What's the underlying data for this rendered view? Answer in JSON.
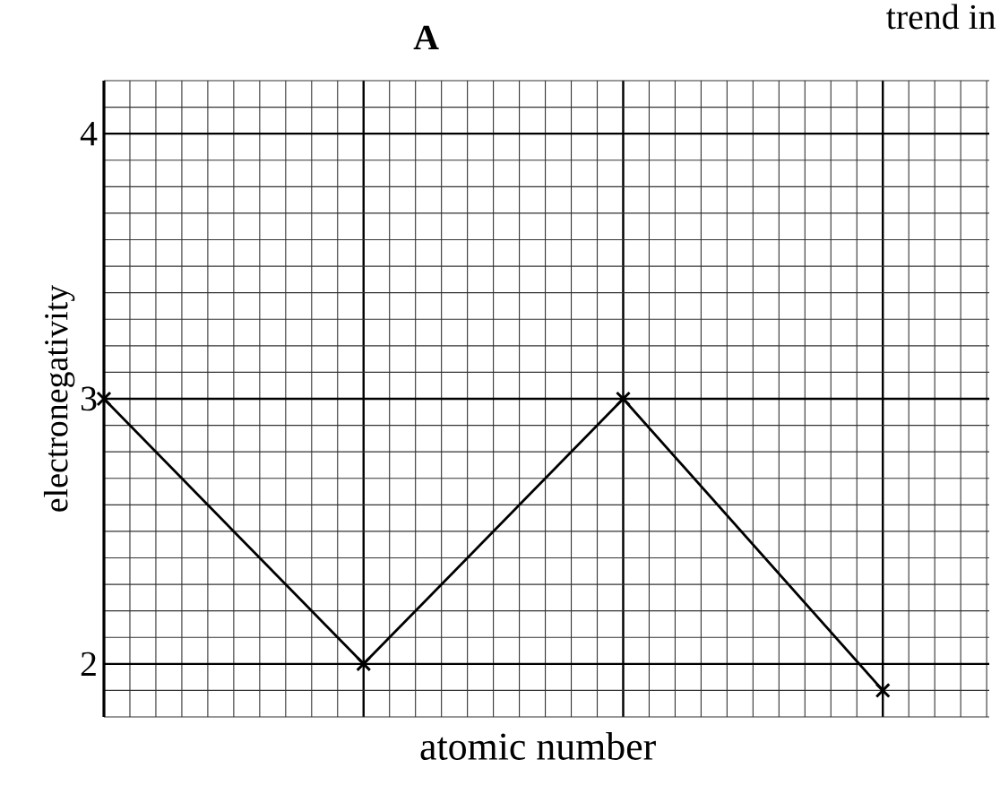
{
  "chart_data": {
    "type": "line",
    "title": "A",
    "xlabel": "atomic number",
    "ylabel": "electronegativity",
    "categories": [
      null,
      null,
      null,
      null
    ],
    "values": [
      3,
      2,
      3,
      1.9
    ],
    "color": "#000000",
    "ylim": [
      1.8,
      4.2
    ],
    "yticks": [
      2,
      3,
      4
    ],
    "grid": true,
    "marker": "cross",
    "line_style": "solid",
    "tick_labels": "y",
    "annotations": [
      "trend in"
    ]
  }
}
